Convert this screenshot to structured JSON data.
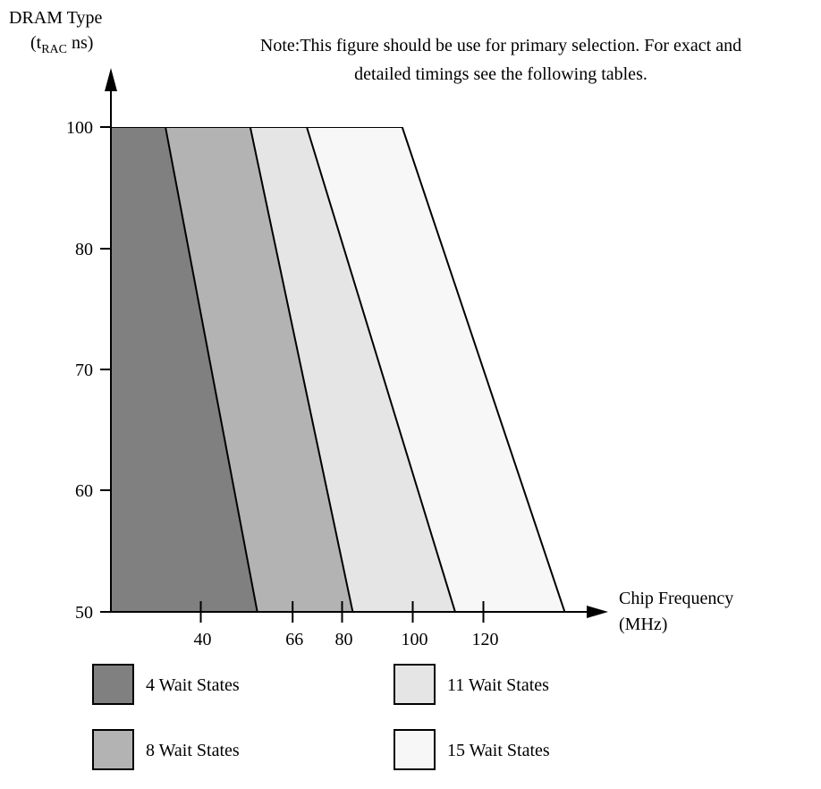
{
  "chart_data": {
    "type": "area",
    "title": "",
    "note_line1": "Note:This figure should be use for primary selection. For exact and",
    "note_line2": "detailed timings see the following tables.",
    "ylabel_line1": "DRAM Type",
    "ylabel_prefix": "(t",
    "ylabel_subscript": "RAC",
    "ylabel_suffix": " ns)",
    "xlabel_line1": "Chip Frequency",
    "xlabel_line2": "(MHz)",
    "y_ticks": [
      {
        "value": 100,
        "label": "100"
      },
      {
        "value": 80,
        "label": "80"
      },
      {
        "value": 70,
        "label": "70"
      },
      {
        "value": 60,
        "label": "60"
      },
      {
        "value": 50,
        "label": "50"
      }
    ],
    "x_ticks": [
      {
        "value": 40,
        "label": "40"
      },
      {
        "value": 66,
        "label": "66"
      },
      {
        "value": 80,
        "label": "80"
      },
      {
        "value": 100,
        "label": "100"
      },
      {
        "value": 120,
        "label": "120"
      }
    ],
    "series": [
      {
        "name": "4 Wait States",
        "color": "#808080",
        "x_at_top": 30,
        "x_at_bottom": 56
      },
      {
        "name": "8 Wait States",
        "color": "#b3b3b3",
        "x_at_top": 54,
        "x_at_bottom": 83
      },
      {
        "name": "11 Wait States",
        "color": "#e5e5e5",
        "x_at_top": 70,
        "x_at_bottom": 112
      },
      {
        "name": "15 Wait States",
        "color": "#f7f7f7",
        "x_at_top": 97,
        "x_at_bottom": 143
      }
    ],
    "legend_position": "bottom"
  }
}
